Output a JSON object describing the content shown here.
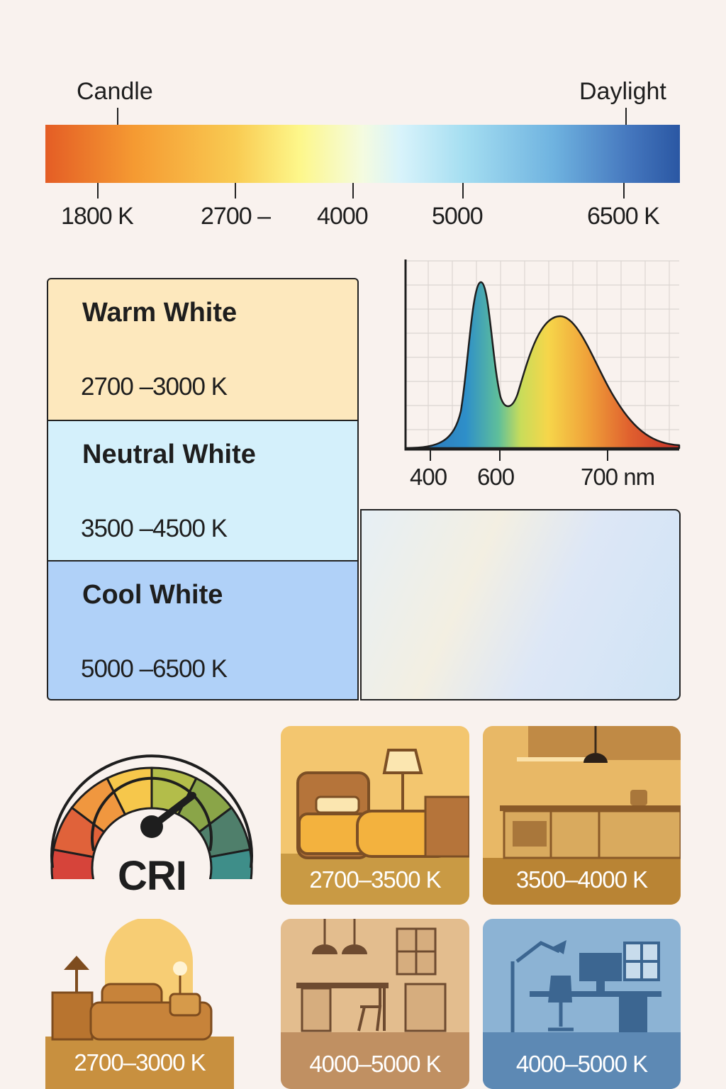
{
  "temperature_scale": {
    "left_label": "Candle",
    "right_label": "Daylight",
    "ticks": [
      "1800 K",
      "2700 –",
      "4000",
      "5000",
      "6500 K"
    ]
  },
  "white_types": [
    {
      "name": "Warm White",
      "range": "2700 –3000 K",
      "color": "#fde8bd"
    },
    {
      "name": "Neutral White",
      "range": "3500 –4500 K",
      "color": "#d4f0fb"
    },
    {
      "name": "Cool White",
      "range": "5000 –6500 K",
      "color": "#b0d1f8"
    }
  ],
  "spectrum": {
    "x_ticks": [
      "400",
      "600",
      "700 nm"
    ]
  },
  "gauge": {
    "label": "CRI",
    "segment_colors": [
      "#d6443a",
      "#e0623a",
      "#f0973f",
      "#f6c74b",
      "#b3bd4a",
      "#8aa548",
      "#4f7f6b",
      "#3e8e89"
    ]
  },
  "scenes": [
    {
      "label": "2700–3500 K",
      "icon": "bedroom-scene-icon"
    },
    {
      "label": "3500–4000 K",
      "icon": "kitchen-scene-icon"
    },
    {
      "label": "2700–3000 K",
      "icon": "living-room-scene-icon"
    },
    {
      "label": "4000–5000 K",
      "icon": "office-scene-icon"
    },
    {
      "label": "4000–5000 K",
      "icon": "study-scene-icon"
    }
  ]
}
